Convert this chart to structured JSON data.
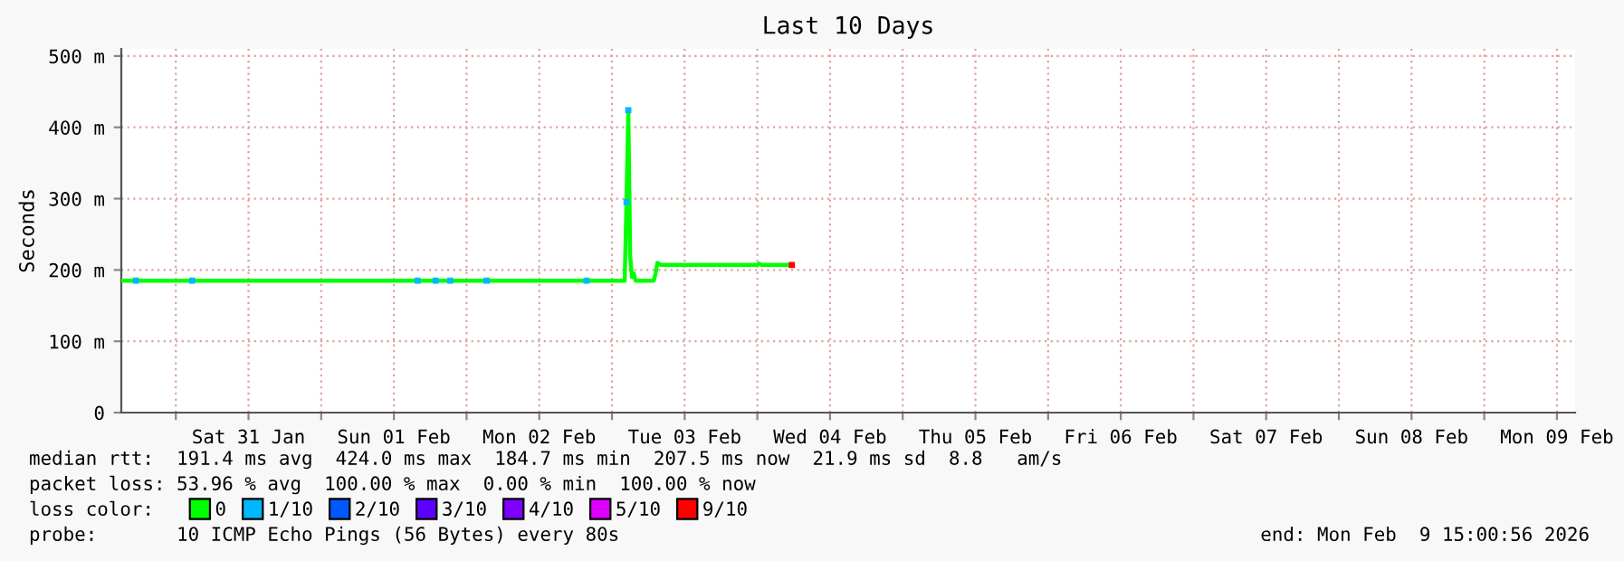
{
  "chart_data": {
    "type": "line",
    "title": "Last 10 Days",
    "ylabel": "Seconds",
    "xlim": [
      "2026-01-30T15:00",
      "2026-02-09T15:00"
    ],
    "xticks": [
      {
        "value": "2026-01-31T00:00",
        "label": null
      },
      {
        "value": "2026-01-31T12:00",
        "label": "Sat 31 Jan"
      },
      {
        "value": "2026-02-01T00:00",
        "label": null
      },
      {
        "value": "2026-02-01T12:00",
        "label": "Sun 01 Feb"
      },
      {
        "value": "2026-02-02T00:00",
        "label": null
      },
      {
        "value": "2026-02-02T12:00",
        "label": "Mon 02 Feb"
      },
      {
        "value": "2026-02-03T00:00",
        "label": null
      },
      {
        "value": "2026-02-03T12:00",
        "label": "Tue 03 Feb"
      },
      {
        "value": "2026-02-04T00:00",
        "label": null
      },
      {
        "value": "2026-02-04T12:00",
        "label": "Wed 04 Feb"
      },
      {
        "value": "2026-02-05T00:00",
        "label": null
      },
      {
        "value": "2026-02-05T12:00",
        "label": "Thu 05 Feb"
      },
      {
        "value": "2026-02-06T00:00",
        "label": null
      },
      {
        "value": "2026-02-06T12:00",
        "label": "Fri 06 Feb"
      },
      {
        "value": "2026-02-07T00:00",
        "label": null
      },
      {
        "value": "2026-02-07T12:00",
        "label": "Sat 07 Feb"
      },
      {
        "value": "2026-02-08T00:00",
        "label": null
      },
      {
        "value": "2026-02-08T12:00",
        "label": "Sun 08 Feb"
      },
      {
        "value": "2026-02-09T00:00",
        "label": null
      },
      {
        "value": "2026-02-09T12:00",
        "label": "Mon 09 Feb"
      }
    ],
    "ylim": [
      0,
      510
    ],
    "yticks": [
      0,
      {
        "value": 100,
        "label": "100 m"
      },
      {
        "value": 200,
        "label": "200 m"
      },
      {
        "value": 300,
        "label": "300 m"
      },
      {
        "value": 400,
        "label": "400 m"
      },
      {
        "value": 500,
        "label": "500 m"
      }
    ],
    "grid": true,
    "legend": "bottom",
    "marker": "none",
    "line_style": "solid",
    "series": [
      {
        "name": "0",
        "color": "#00ff00",
        "x": [
          "2026-01-30T15:00",
          "2026-02-03T02:06",
          "2026-02-03T02:24",
          "2026-02-03T02:42",
          "2026-02-03T03:00",
          "2026-02-03T03:18",
          "2026-02-03T03:36",
          "2026-02-03T03:54",
          "2026-02-03T06:54",
          "2026-02-03T07:12",
          "2026-02-03T07:30",
          "2026-02-03T08:06",
          "2026-02-04T00:00",
          "2026-02-04T00:18",
          "2026-02-04T00:36",
          "2026-02-04T05:42"
        ],
        "values": [
          185,
          185,
          295,
          424,
          220,
          190,
          195,
          185,
          185,
          195,
          210,
          207,
          207,
          209,
          207,
          207
        ]
      },
      {
        "name": "1/10",
        "color": "#00b8ff",
        "type": "scatter",
        "marker": "square",
        "x": [
          "2026-01-30T17:24",
          "2026-01-31T02:42",
          "2026-02-01T15:54",
          "2026-02-01T18:54",
          "2026-02-01T21:18",
          "2026-02-02T03:18",
          "2026-02-02T19:48",
          "2026-02-03T02:24",
          "2026-02-03T02:42"
        ],
        "values": [
          185,
          185,
          185,
          185,
          185,
          185,
          185,
          295,
          424
        ]
      },
      {
        "name": "2/10",
        "color": "#0059ff",
        "type": "scatter"
      },
      {
        "name": "3/10",
        "color": "#5e00ff",
        "type": "scatter"
      },
      {
        "name": "4/10",
        "color": "#7e00ff",
        "type": "scatter"
      },
      {
        "name": "5/10",
        "color": "#dd00ff",
        "type": "scatter"
      },
      {
        "name": "9/10",
        "color": "#ff0000",
        "type": "scatter",
        "marker": "square",
        "x": [
          "2026-02-04T05:42"
        ],
        "values": [
          207
        ]
      }
    ],
    "annotations": [
      "median rtt:  191.4 ms avg  424.0 ms max  184.7 ms min  207.5 ms now  21.9 ms sd  8.8   am/s",
      "packet loss: 53.96 % avg  100.00 % max  0.00 % min  100.00 % now",
      "loss color:",
      "probe:       10 ICMP Echo Pings (56 Bytes) every 80s",
      "end: Mon Feb  9 15:00:56 2026"
    ]
  }
}
